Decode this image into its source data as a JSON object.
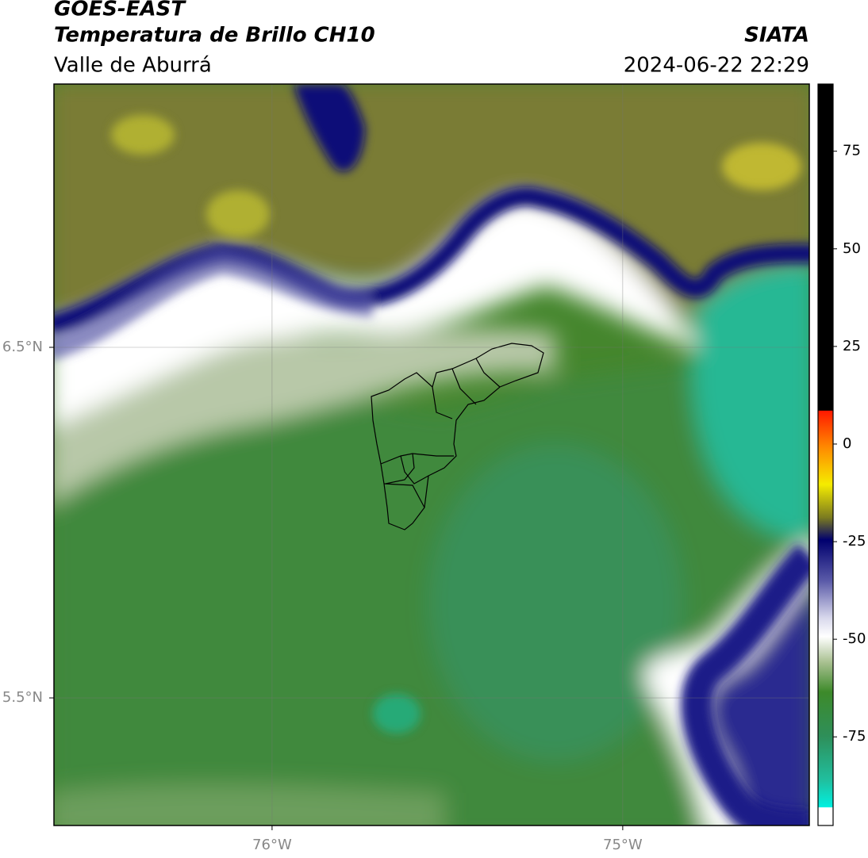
{
  "header": {
    "title": "GOES-EAST",
    "subtitle": "Temperatura de Brillo CH10",
    "region": "Valle de Aburrá",
    "source": "SIATA",
    "datetime": "2024-06-22 22:29"
  },
  "map": {
    "lonlim": [
      -76.622,
      -74.468
    ],
    "latlim": [
      5.136,
      7.251
    ],
    "grid": true,
    "lon_ticks": [
      {
        "value": -76,
        "label": "76°W"
      },
      {
        "value": -75,
        "label": "75°W"
      }
    ],
    "lat_ticks": [
      {
        "value": 6.5,
        "label": "6.5°N"
      },
      {
        "value": 5.5,
        "label": "5.5°N"
      }
    ]
  },
  "colorbar": {
    "lim": [
      -97.7,
      92.2
    ],
    "ticks": [
      75,
      50,
      25,
      0,
      -25,
      -50,
      -75
    ]
  }
}
